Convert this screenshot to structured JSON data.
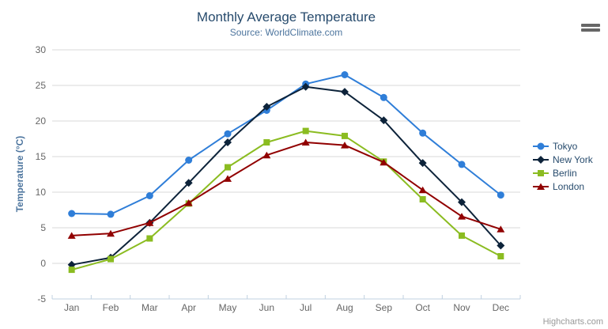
{
  "header": {
    "title": "Monthly Average Temperature",
    "subtitle": "Source: WorldClimate.com"
  },
  "chart_data": {
    "type": "line",
    "title": "Monthly Average Temperature",
    "subtitle": "Source: WorldClimate.com",
    "categories": [
      "Jan",
      "Feb",
      "Mar",
      "Apr",
      "May",
      "Jun",
      "Jul",
      "Aug",
      "Sep",
      "Oct",
      "Nov",
      "Dec"
    ],
    "series": [
      {
        "name": "Tokyo",
        "color": "#2f7ed8",
        "marker": "circle",
        "values": [
          7.0,
          6.9,
          9.5,
          14.5,
          18.2,
          21.5,
          25.2,
          26.5,
          23.3,
          18.3,
          13.9,
          9.6
        ]
      },
      {
        "name": "New York",
        "color": "#0d233a",
        "marker": "diamond",
        "values": [
          -0.2,
          0.8,
          5.7,
          11.3,
          17.0,
          22.0,
          24.8,
          24.1,
          20.1,
          14.1,
          8.6,
          2.5
        ]
      },
      {
        "name": "Berlin",
        "color": "#8bbc21",
        "marker": "square",
        "values": [
          -0.9,
          0.6,
          3.5,
          8.4,
          13.5,
          17.0,
          18.6,
          17.9,
          14.3,
          9.0,
          3.9,
          1.0
        ]
      },
      {
        "name": "London",
        "color": "#910000",
        "marker": "triangle",
        "values": [
          3.9,
          4.2,
          5.7,
          8.5,
          11.9,
          15.2,
          17.0,
          16.6,
          14.2,
          10.3,
          6.6,
          4.8
        ]
      }
    ],
    "xlabel": "",
    "ylabel": "Temperature (°C)",
    "ylim": [
      -5,
      30
    ],
    "yticks": [
      -5,
      0,
      5,
      10,
      15,
      20,
      25,
      30
    ],
    "grid": true,
    "legend_position": "right"
  },
  "colors": {
    "title": "#274b6d",
    "subtitle": "#4d759e",
    "axis_title": "#4d759e",
    "tick_label": "#666666",
    "axis_line": "#c0d0e0",
    "gridline": "#d8d8d8",
    "legend_text": "#274b6d",
    "credits": "#999999",
    "menu_icon": "#666666",
    "background": "#ffffff"
  },
  "menu": {
    "icon": "hamburger-icon"
  },
  "credits": {
    "label": "Highcharts.com"
  }
}
